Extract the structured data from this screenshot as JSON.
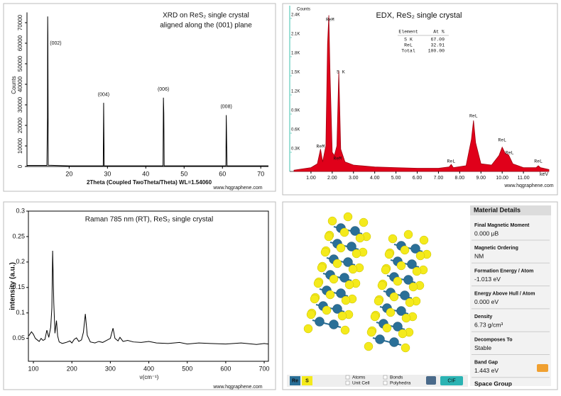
{
  "chart_data": [
    {
      "type": "line",
      "title": "XRD on ReS₂ single crystal",
      "subtitle": "aligned along the (001) plane",
      "x_label": "2Theta (Coupled TwoTheta/Theta) WL=1.54060",
      "y_label": "Counts",
      "watermark": "www.hqgraphene.com",
      "color": "#000000",
      "x": [
        9,
        14.2,
        14.35,
        14.4,
        14.45,
        14.55,
        20,
        28.9,
        29.0,
        29.15,
        44.5,
        44.6,
        44.7,
        44.8,
        60.9,
        61.0,
        61.1,
        61.2,
        72
      ],
      "values": [
        500,
        500,
        24000,
        73000,
        64000,
        600,
        300,
        300,
        31000,
        300,
        300,
        33500,
        26000,
        300,
        300,
        25000,
        12000,
        300,
        300
      ],
      "xlim": [
        9,
        72
      ],
      "ylim": [
        0,
        75000
      ],
      "xticks": [
        20,
        30,
        40,
        50,
        60,
        70
      ],
      "yticks": [
        0,
        10000,
        20000,
        30000,
        40000,
        50000,
        60000,
        70000
      ],
      "annotations": [
        {
          "text": "(002)",
          "x": 16.5,
          "y": 60000
        },
        {
          "text": "(004)",
          "x": 29.0,
          "y": 35000
        },
        {
          "text": "(006)",
          "x": 44.6,
          "y": 37500
        },
        {
          "text": "(008)",
          "x": 61.0,
          "y": 29000
        }
      ]
    },
    {
      "type": "area",
      "title": "EDX, ReS₂ single crystal",
      "x_label": "keV",
      "y_label": "Counts",
      "watermark": "www.hqgraphene.com",
      "color": "#e0001a",
      "x": [
        0.2,
        0.6,
        1.0,
        1.3,
        1.45,
        1.55,
        1.7,
        1.78,
        1.84,
        1.9,
        2.0,
        2.1,
        2.22,
        2.31,
        2.4,
        2.6,
        3.0,
        4.0,
        5.0,
        6.0,
        7.0,
        7.5,
        7.6,
        7.7,
        8.3,
        8.55,
        8.65,
        8.75,
        9.0,
        9.5,
        9.85,
        10.0,
        10.15,
        10.3,
        10.5,
        11.0,
        11.6,
        11.7,
        11.8,
        12.2
      ],
      "values": [
        20,
        40,
        60,
        120,
        350,
        150,
        400,
        2000,
        2450,
        1500,
        300,
        250,
        400,
        1580,
        350,
        150,
        100,
        70,
        60,
        50,
        50,
        70,
        110,
        60,
        90,
        500,
        800,
        450,
        120,
        100,
        250,
        380,
        280,
        260,
        120,
        60,
        60,
        90,
        60,
        30
      ],
      "xlim": [
        0,
        12.2
      ],
      "ylim": [
        0,
        2500
      ],
      "xticks": [
        {
          "value": 1,
          "label": "1.00"
        },
        {
          "value": 2,
          "label": "2.00"
        },
        {
          "value": 3,
          "label": "3.00"
        },
        {
          "value": 4,
          "label": "4.00"
        },
        {
          "value": 5,
          "label": "5.00"
        },
        {
          "value": 6,
          "label": "6.00"
        },
        {
          "value": 7,
          "label": "7.00"
        },
        {
          "value": 8,
          "label": "8.00"
        },
        {
          "value": 9,
          "label": "9.00"
        },
        {
          "value": 10,
          "label": "10.00"
        },
        {
          "value": 11,
          "label": "11.00"
        }
      ],
      "yticks": [
        {
          "value": 300,
          "label": "0.3K"
        },
        {
          "value": 600,
          "label": "0.6K"
        },
        {
          "value": 900,
          "label": "0.9K"
        },
        {
          "value": 1200,
          "label": "1.2K"
        },
        {
          "value": 1500,
          "label": "1.5K"
        },
        {
          "value": 1800,
          "label": "1.8K"
        },
        {
          "value": 2100,
          "label": "2.1K"
        },
        {
          "value": 2400,
          "label": "2.4K"
        }
      ],
      "annotations": [
        {
          "text": "ReM",
          "x": 1.9,
          "y": 2380
        },
        {
          "text": "S K",
          "x": 2.4,
          "y": 1560
        },
        {
          "text": "ReM",
          "x": 1.45,
          "y": 390
        },
        {
          "text": "ReM",
          "x": 2.25,
          "y": 200
        },
        {
          "text": "ReL",
          "x": 7.6,
          "y": 160
        },
        {
          "text": "ReL",
          "x": 8.65,
          "y": 870
        },
        {
          "text": "ReL",
          "x": 10.0,
          "y": 490
        },
        {
          "text": "ReL",
          "x": 10.35,
          "y": 290
        },
        {
          "text": "ReL",
          "x": 11.7,
          "y": 160
        }
      ],
      "table": {
        "columns": [
          "Element",
          "At %"
        ],
        "rows": [
          [
            "S K",
            "67.09"
          ],
          [
            "ReL",
            "32.91"
          ],
          [
            "Total",
            "100.00"
          ]
        ]
      }
    },
    {
      "type": "line",
      "title": "Raman 785 nm (RT), ReS₂ single crystal",
      "x_label": "ν(cm⁻¹)",
      "y_label": "intensity (a.u.)",
      "watermark": "www.hqgraphene.com",
      "color": "#000000",
      "x": [
        88,
        95,
        100,
        105,
        110,
        115,
        120,
        125,
        130,
        135,
        140,
        145,
        148,
        150,
        153,
        156,
        160,
        163,
        167,
        175,
        185,
        195,
        200,
        206,
        212,
        218,
        225,
        230,
        235,
        240,
        248,
        260,
        270,
        280,
        290,
        300,
        307,
        312,
        320,
        325,
        333,
        345,
        360,
        380,
        400,
        420,
        450,
        480,
        500,
        530,
        560,
        600,
        640,
        680,
        700,
        710
      ],
      "values": [
        0.055,
        0.063,
        0.058,
        0.05,
        0.047,
        0.044,
        0.05,
        0.046,
        0.048,
        0.066,
        0.052,
        0.072,
        0.11,
        0.222,
        0.12,
        0.06,
        0.085,
        0.055,
        0.043,
        0.04,
        0.042,
        0.045,
        0.041,
        0.048,
        0.051,
        0.044,
        0.047,
        0.062,
        0.098,
        0.056,
        0.043,
        0.041,
        0.044,
        0.042,
        0.046,
        0.05,
        0.07,
        0.05,
        0.045,
        0.052,
        0.044,
        0.046,
        0.043,
        0.042,
        0.044,
        0.041,
        0.04,
        0.042,
        0.039,
        0.041,
        0.04,
        0.039,
        0.041,
        0.038,
        0.04,
        0.039
      ],
      "xlim": [
        87,
        711
      ],
      "ylim": [
        0.005,
        0.3
      ],
      "xticks": [
        100,
        200,
        300,
        400,
        500,
        600,
        700
      ],
      "yticks": [
        0.05,
        0.1,
        0.15,
        0.2,
        0.25,
        0.3
      ]
    }
  ],
  "material_panel": {
    "heading": "Material Details",
    "items": [
      {
        "label": "Final Magnetic Moment",
        "value": "0.000 μB"
      },
      {
        "label": "Magnetic Ordering",
        "value": "NM"
      },
      {
        "label": "Formation Energy / Atom",
        "value": "-1.013 eV"
      },
      {
        "label": "Energy Above Hull / Atom",
        "value": "0.000 eV"
      },
      {
        "label": "Density",
        "value": "6.73 g/cm³"
      },
      {
        "label": "Decomposes To",
        "value": "Stable"
      },
      {
        "label": "Band Gap",
        "value": "1.443 eV"
      }
    ],
    "next_heading": "Space Group",
    "elements": [
      "Re",
      "S"
    ],
    "checkboxes": [
      "Atoms",
      "Unit Cell",
      "Bonds",
      "Polyhedra"
    ],
    "button": "CIF"
  }
}
